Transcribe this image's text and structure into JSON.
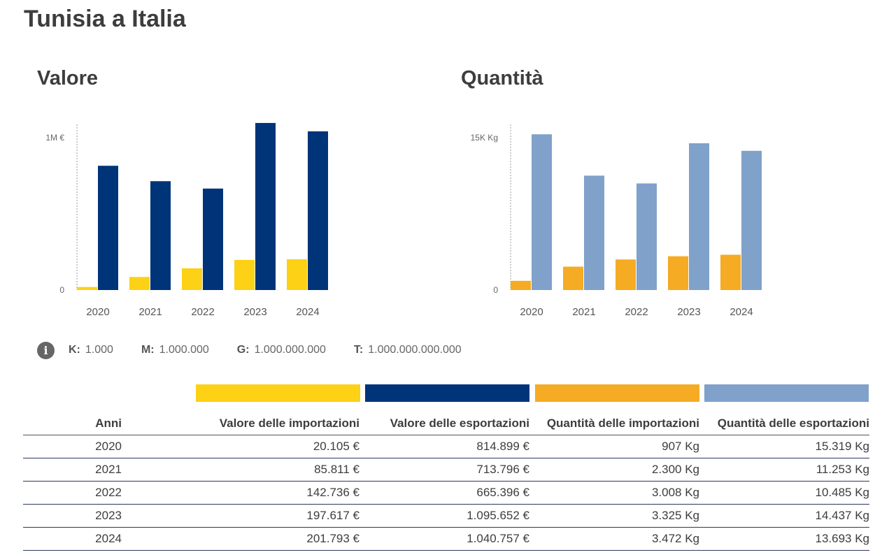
{
  "page": {
    "title": "Tunisia a Italia"
  },
  "colors": {
    "import_value": "#fcd116",
    "export_value": "#003478",
    "import_qty": "#f5ab23",
    "export_qty": "#80a1ca",
    "axis": "#999999",
    "text": "#3d3d3d"
  },
  "chart_data": [
    {
      "type": "bar",
      "title": "Valore",
      "categories": [
        "2020",
        "2021",
        "2022",
        "2023",
        "2024"
      ],
      "series": [
        {
          "values": [
            20105,
            85811,
            142736,
            197617,
            201793
          ]
        },
        {
          "values": [
            814899,
            713796,
            665396,
            1095652,
            1040757
          ]
        }
      ],
      "yticks": [
        {
          "value": 0,
          "label": "0"
        },
        {
          "value": 1000000,
          "label": "1M €"
        }
      ],
      "ylim": [
        0,
        1100000
      ],
      "grid": false
    },
    {
      "type": "bar",
      "title": "Quantità",
      "categories": [
        "2020",
        "2021",
        "2022",
        "2023",
        "2024"
      ],
      "series": [
        {
          "values": [
            907,
            2300,
            3008,
            3325,
            3472
          ]
        },
        {
          "values": [
            15319,
            11253,
            10485,
            14437,
            13693
          ]
        }
      ],
      "yticks": [
        {
          "value": 0,
          "label": "0"
        },
        {
          "value": 15000,
          "label": "15K Kg"
        }
      ],
      "ylim": [
        0,
        16500
      ],
      "grid": false
    }
  ],
  "units_legend": [
    {
      "key": "K:",
      "value": "1.000"
    },
    {
      "key": "M:",
      "value": "1.000.000"
    },
    {
      "key": "G:",
      "value": "1.000.000.000"
    },
    {
      "key": "T:",
      "value": "1.000.000.000.000"
    }
  ],
  "table": {
    "headers": [
      "Anni",
      "Valore delle importazioni",
      "Valore delle esportazioni",
      "Quantità delle importazioni",
      "Quantità delle esportazioni"
    ],
    "rows": [
      [
        "2020",
        "20.105 €",
        "814.899 €",
        "907 Kg",
        "15.319 Kg"
      ],
      [
        "2021",
        "85.811 €",
        "713.796 €",
        "2.300 Kg",
        "11.253 Kg"
      ],
      [
        "2022",
        "142.736 €",
        "665.396 €",
        "3.008 Kg",
        "10.485 Kg"
      ],
      [
        "2023",
        "197.617 €",
        "1.095.652 €",
        "3.325 Kg",
        "14.437 Kg"
      ],
      [
        "2024",
        "201.793 €",
        "1.040.757 €",
        "3.472 Kg",
        "13.693 Kg"
      ]
    ]
  }
}
